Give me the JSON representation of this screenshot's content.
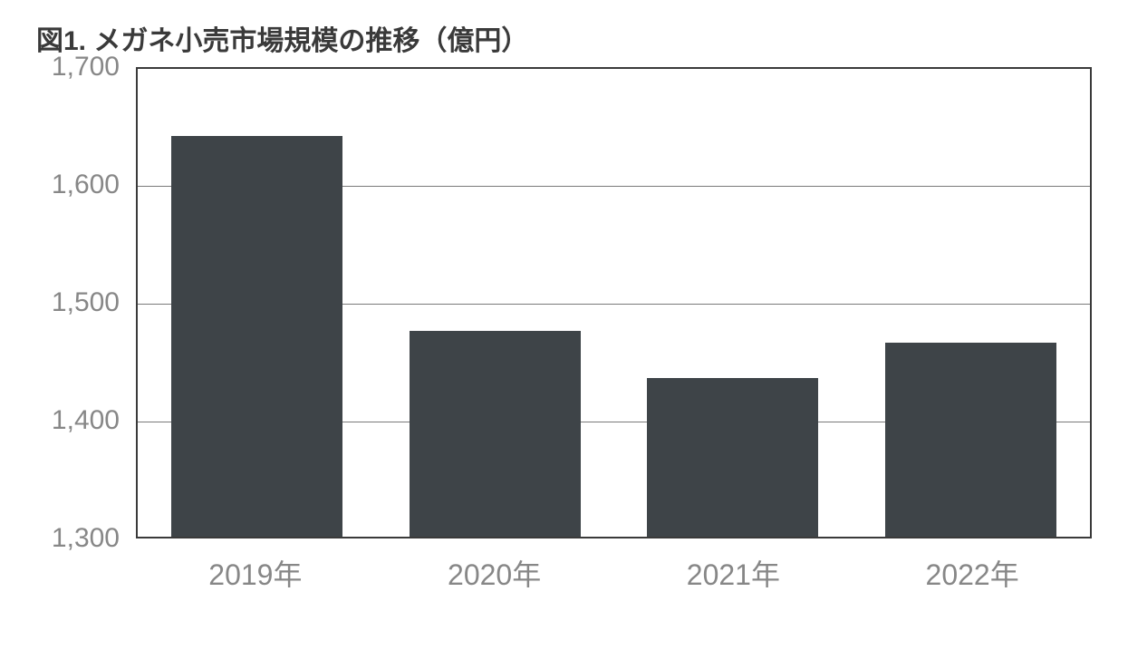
{
  "chart": {
    "type": "bar",
    "title": "図1. メガネ小売市場規模の推移（億円）",
    "title_fontsize": 30,
    "title_color": "#3a3a3a",
    "categories": [
      "2019年",
      "2020年",
      "2021年",
      "2022年"
    ],
    "values": [
      1640,
      1475,
      1435,
      1465
    ],
    "bar_color": "#3e4448",
    "ylim": [
      1300,
      1700
    ],
    "yticks": [
      1300,
      1400,
      1500,
      1600,
      1700
    ],
    "ytick_labels": [
      "1,300",
      "1,400",
      "1,500",
      "1,600",
      "1,700"
    ],
    "tick_fontsize": 30,
    "tick_color": "#878787",
    "background_color": "#ffffff",
    "border_color": "#3a3a3a",
    "grid_color": "#7a7a7a",
    "bar_width": 0.72
  }
}
